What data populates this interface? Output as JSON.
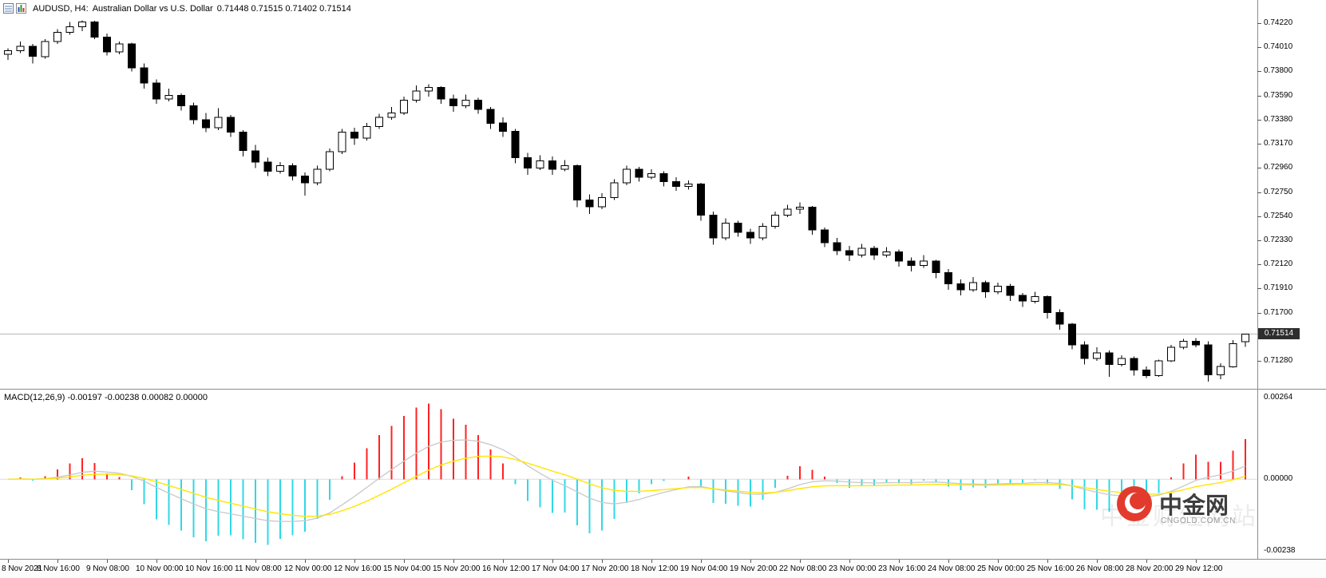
{
  "header": {
    "symbol": "AUDUSD, H4:",
    "description": "Australian Dollar vs U.S. Dollar",
    "ohlc": "0.71448 0.71515 0.71402 0.71514",
    "icons": {
      "left_primary": "chart-grid-icon",
      "left_secondary": "candlestick-chart-icon"
    }
  },
  "brand": {
    "name": "中金网",
    "domain": "CNGOLD.COM.CN",
    "watermark": "中金财经网站"
  },
  "chart_data": [
    {
      "type": "candlestick",
      "symbol": "AUDUSD",
      "timeframe": "H4",
      "title": "AUDUSD H4 Australian Dollar vs U.S. Dollar",
      "ylim": [
        0.71037,
        0.74422
      ],
      "y_axis_labels": [
        "0.74220",
        "0.74010",
        "0.73800",
        "0.73590",
        "0.73380",
        "0.73170",
        "0.72960",
        "0.72750",
        "0.72540",
        "0.72330",
        "0.72120",
        "0.71910",
        "0.71700",
        "0.71280"
      ],
      "current_price": 0.71514,
      "current_price_label": "0.71514",
      "x_label_every": 4,
      "x_labels": [
        "8 Nov 2021",
        "8 Nov 16:00",
        "9 Nov 08:00",
        "10 Nov 00:00",
        "10 Nov 16:00",
        "11 Nov 08:00",
        "12 Nov 00:00",
        "12 Nov 16:00",
        "15 Nov 04:00",
        "15 Nov 20:00",
        "16 Nov 12:00",
        "17 Nov 04:00",
        "17 Nov 20:00",
        "18 Nov 12:00",
        "19 Nov 04:00",
        "19 Nov 20:00",
        "22 Nov 08:00",
        "23 Nov 00:00",
        "23 Nov 16:00",
        "24 Nov 08:00",
        "25 Nov 00:00",
        "25 Nov 16:00",
        "26 Nov 08:00",
        "28 Nov 20:00",
        "29 Nov 12:00"
      ],
      "candles": [
        [
          0.7395,
          0.74,
          0.739,
          0.7398
        ],
        [
          0.7398,
          0.7406,
          0.7396,
          0.7402
        ],
        [
          0.7402,
          0.7404,
          0.7387,
          0.7393
        ],
        [
          0.7393,
          0.7408,
          0.7391,
          0.7406
        ],
        [
          0.7406,
          0.7417,
          0.7404,
          0.7414
        ],
        [
          0.7414,
          0.7423,
          0.7412,
          0.7419
        ],
        [
          0.7419,
          0.74245,
          0.7415,
          0.7423
        ],
        [
          0.7423,
          0.7424,
          0.7408,
          0.741
        ],
        [
          0.741,
          0.7413,
          0.7394,
          0.7397
        ],
        [
          0.7397,
          0.7406,
          0.7395,
          0.7404
        ],
        [
          0.7404,
          0.7405,
          0.738,
          0.7383
        ],
        [
          0.7383,
          0.7387,
          0.7365,
          0.737
        ],
        [
          0.737,
          0.7373,
          0.7352,
          0.7356
        ],
        [
          0.7356,
          0.7365,
          0.7354,
          0.7359
        ],
        [
          0.7359,
          0.7361,
          0.7346,
          0.735
        ],
        [
          0.735,
          0.7353,
          0.7334,
          0.7338
        ],
        [
          0.7338,
          0.7344,
          0.7327,
          0.7331
        ],
        [
          0.7331,
          0.7348,
          0.7329,
          0.734
        ],
        [
          0.734,
          0.7342,
          0.7323,
          0.7327
        ],
        [
          0.7327,
          0.7329,
          0.7306,
          0.7311
        ],
        [
          0.7311,
          0.7316,
          0.7296,
          0.7301
        ],
        [
          0.7301,
          0.7305,
          0.7289,
          0.7293
        ],
        [
          0.7293,
          0.7301,
          0.7291,
          0.7298
        ],
        [
          0.7298,
          0.73,
          0.7285,
          0.7289
        ],
        [
          0.7289,
          0.7292,
          0.7272,
          0.7283
        ],
        [
          0.7283,
          0.7298,
          0.7281,
          0.7295
        ],
        [
          0.7295,
          0.7313,
          0.7293,
          0.731
        ],
        [
          0.731,
          0.733,
          0.7308,
          0.7327
        ],
        [
          0.7327,
          0.7331,
          0.7316,
          0.7322
        ],
        [
          0.7322,
          0.7335,
          0.732,
          0.7332
        ],
        [
          0.7332,
          0.7343,
          0.733,
          0.734
        ],
        [
          0.734,
          0.7349,
          0.7338,
          0.7344
        ],
        [
          0.7344,
          0.7358,
          0.7342,
          0.7355
        ],
        [
          0.7355,
          0.7368,
          0.7353,
          0.7363
        ],
        [
          0.7363,
          0.7369,
          0.7358,
          0.7366
        ],
        [
          0.7366,
          0.7367,
          0.7352,
          0.7356
        ],
        [
          0.7356,
          0.736,
          0.7345,
          0.735
        ],
        [
          0.735,
          0.736,
          0.7348,
          0.7355
        ],
        [
          0.7355,
          0.7357,
          0.7343,
          0.7347
        ],
        [
          0.7347,
          0.7349,
          0.733,
          0.7335
        ],
        [
          0.7335,
          0.734,
          0.7323,
          0.7328
        ],
        [
          0.7328,
          0.733,
          0.73,
          0.7305
        ],
        [
          0.7305,
          0.7309,
          0.729,
          0.7296
        ],
        [
          0.7296,
          0.7307,
          0.7294,
          0.7302
        ],
        [
          0.7302,
          0.7306,
          0.729,
          0.7295
        ],
        [
          0.7295,
          0.7303,
          0.7293,
          0.7298
        ],
        [
          0.7298,
          0.7299,
          0.7262,
          0.7268
        ],
        [
          0.7268,
          0.7273,
          0.7256,
          0.7262
        ],
        [
          0.7262,
          0.7274,
          0.726,
          0.727
        ],
        [
          0.727,
          0.7286,
          0.7268,
          0.7283
        ],
        [
          0.7283,
          0.7298,
          0.7281,
          0.7295
        ],
        [
          0.7295,
          0.7297,
          0.7284,
          0.7288
        ],
        [
          0.7288,
          0.7295,
          0.7286,
          0.7291
        ],
        [
          0.7291,
          0.7293,
          0.728,
          0.7284
        ],
        [
          0.7284,
          0.7288,
          0.7276,
          0.728
        ],
        [
          0.728,
          0.7285,
          0.7277,
          0.7282
        ],
        [
          0.7282,
          0.7283,
          0.725,
          0.7255
        ],
        [
          0.7255,
          0.7258,
          0.7229,
          0.7235
        ],
        [
          0.7235,
          0.7252,
          0.7233,
          0.7248
        ],
        [
          0.7248,
          0.725,
          0.7236,
          0.724
        ],
        [
          0.724,
          0.7243,
          0.723,
          0.7235
        ],
        [
          0.7235,
          0.7248,
          0.7233,
          0.7245
        ],
        [
          0.7245,
          0.7258,
          0.7243,
          0.7255
        ],
        [
          0.7255,
          0.7264,
          0.7253,
          0.726
        ],
        [
          0.726,
          0.7266,
          0.7256,
          0.7262
        ],
        [
          0.7262,
          0.7263,
          0.7238,
          0.7242
        ],
        [
          0.7242,
          0.7244,
          0.7227,
          0.7231
        ],
        [
          0.7231,
          0.7235,
          0.722,
          0.7224
        ],
        [
          0.7224,
          0.7228,
          0.7215,
          0.722
        ],
        [
          0.722,
          0.723,
          0.7218,
          0.7226
        ],
        [
          0.7226,
          0.7228,
          0.7216,
          0.722
        ],
        [
          0.722,
          0.7227,
          0.7218,
          0.7223
        ],
        [
          0.7223,
          0.7225,
          0.721,
          0.7215
        ],
        [
          0.7215,
          0.7218,
          0.7206,
          0.7211
        ],
        [
          0.7211,
          0.722,
          0.7209,
          0.7215
        ],
        [
          0.7215,
          0.7216,
          0.72,
          0.7205
        ],
        [
          0.7205,
          0.7208,
          0.719,
          0.7195
        ],
        [
          0.7195,
          0.7199,
          0.7185,
          0.719
        ],
        [
          0.719,
          0.7201,
          0.7188,
          0.7196
        ],
        [
          0.7196,
          0.7198,
          0.7183,
          0.7188
        ],
        [
          0.7188,
          0.7196,
          0.7186,
          0.7193
        ],
        [
          0.7193,
          0.7195,
          0.718,
          0.7185
        ],
        [
          0.7185,
          0.7187,
          0.7175,
          0.718
        ],
        [
          0.718,
          0.7188,
          0.7178,
          0.7184
        ],
        [
          0.7184,
          0.7185,
          0.7165,
          0.717
        ],
        [
          0.717,
          0.7173,
          0.7155,
          0.716
        ],
        [
          0.716,
          0.7161,
          0.7138,
          0.7142
        ],
        [
          0.7142,
          0.7145,
          0.7125,
          0.713
        ],
        [
          0.713,
          0.714,
          0.7128,
          0.7135
        ],
        [
          0.7135,
          0.7137,
          0.7114,
          0.7125
        ],
        [
          0.7125,
          0.7133,
          0.7123,
          0.713
        ],
        [
          0.713,
          0.7132,
          0.7115,
          0.712
        ],
        [
          0.712,
          0.7123,
          0.7113,
          0.7115
        ],
        [
          0.7115,
          0.7129,
          0.7114,
          0.7128
        ],
        [
          0.7128,
          0.7142,
          0.7127,
          0.714
        ],
        [
          0.714,
          0.7147,
          0.7138,
          0.7145
        ],
        [
          0.7145,
          0.7148,
          0.714,
          0.7142
        ],
        [
          0.7142,
          0.7145,
          0.711,
          0.7116
        ],
        [
          0.7116,
          0.7126,
          0.7112,
          0.7123
        ],
        [
          0.7123,
          0.7146,
          0.7122,
          0.7143
        ],
        [
          0.71448,
          0.71515,
          0.71402,
          0.71514
        ]
      ],
      "colors": {
        "bull": "#ffffff",
        "bear": "#000000",
        "outline": "#000000",
        "price_line": "#b4b4b4",
        "badge_bg": "#2e2e2e",
        "badge_text": "#ffffff"
      }
    },
    {
      "type": "macd",
      "label": "MACD(12,26,9) -0.00197 -0.00238 0.00082 0.00000",
      "params": [
        12,
        26,
        9
      ],
      "y_axis_labels": [
        "0.00264",
        "0.00000",
        "-0.00238"
      ],
      "colors": {
        "hist_up": "#ff2222",
        "hist_down": "#2fd8e6",
        "macd_line": "#c8c8c8",
        "signal_line": "#ffe600",
        "zero_line": "#dcdcdc"
      }
    }
  ]
}
